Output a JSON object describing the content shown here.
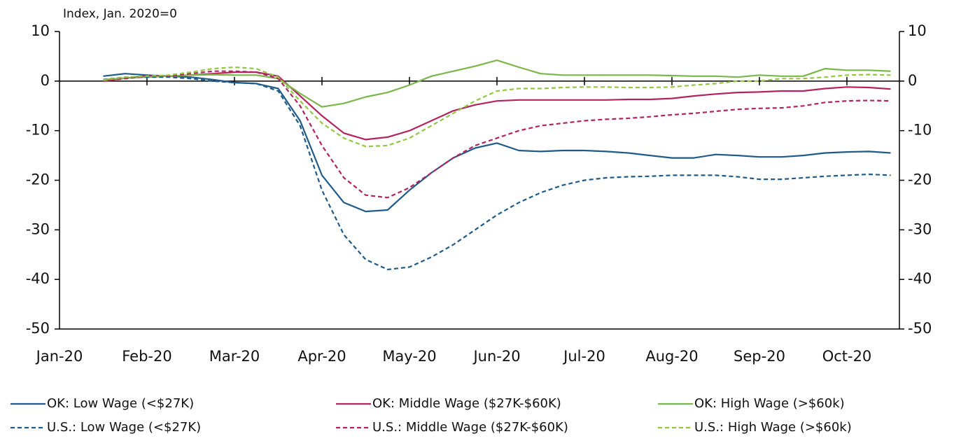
{
  "chart_data": {
    "type": "line",
    "y_label": "Index, Jan. 2020=0",
    "categories": [
      "Jan-20",
      null,
      null,
      null,
      "Feb-20",
      null,
      null,
      null,
      "Mar-20",
      null,
      null,
      null,
      "Apr-20",
      null,
      null,
      null,
      "May-20",
      null,
      null,
      null,
      "Jun-20",
      null,
      null,
      null,
      "Jul-20",
      null,
      null,
      null,
      "Aug-20",
      null,
      null,
      null,
      "Sep-20",
      null,
      null,
      null,
      "Oct-20",
      null,
      null
    ],
    "series": [
      {
        "name": "OK: Low Wage (<$27K)",
        "color": "#1f5b8a",
        "dashed": false,
        "values": [
          null,
          null,
          1,
          1.5,
          1.2,
          1,
          0.8,
          0.3,
          -0.3,
          -0.5,
          -1.5,
          -8,
          -19,
          -24.5,
          -26.3,
          -26,
          -22,
          -18.5,
          -15.5,
          -13.5,
          -12.5,
          -14,
          -14.2,
          -14,
          -14,
          -14.2,
          -14.5,
          -15,
          -15.5,
          -15.5,
          -14.8,
          -15,
          -15.3,
          -15.3,
          -15,
          -14.5,
          -14.3,
          -14.2,
          -14.5
        ]
      },
      {
        "name": "OK: Middle Wage ($27K-$60K)",
        "color": "#b5235f",
        "dashed": false,
        "values": [
          null,
          null,
          0,
          0.6,
          1,
          1,
          1.2,
          1.5,
          1.8,
          1.8,
          1,
          -3,
          -7,
          -10.5,
          -11.8,
          -11.3,
          -10,
          -8,
          -6,
          -4.8,
          -4,
          -3.8,
          -3.8,
          -3.8,
          -3.8,
          -3.8,
          -3.7,
          -3.7,
          -3.5,
          -3,
          -2.6,
          -2.3,
          -2.2,
          -2,
          -2,
          -1.5,
          -1.2,
          -1.3,
          -1.6
        ]
      },
      {
        "name": "OK: High Wage (>$60k)",
        "color": "#7ab648",
        "dashed": false,
        "values": [
          null,
          null,
          0.3,
          0.6,
          0.8,
          1,
          1.2,
          1.3,
          1.2,
          1.2,
          0.5,
          -2.5,
          -5.2,
          -4.5,
          -3.2,
          -2.3,
          -0.8,
          1,
          2,
          3,
          4.2,
          2.8,
          1.5,
          1.2,
          1.2,
          1.2,
          1.2,
          1.2,
          1.1,
          1,
          1,
          0.8,
          1.2,
          1,
          1,
          2.5,
          2.2,
          2.2,
          2
        ]
      },
      {
        "name": "U.S.: Low Wage (<$27K)",
        "color": "#1f5b8a",
        "dashed": true,
        "values": [
          null,
          null,
          0.3,
          0.8,
          0.8,
          0.8,
          0.5,
          0,
          -0.3,
          -0.5,
          -2,
          -9,
          -22,
          -31,
          -36,
          -38,
          -37.5,
          -35.5,
          -33,
          -30,
          -27,
          -24.5,
          -22.5,
          -21,
          -20,
          -19.5,
          -19.3,
          -19.2,
          -19,
          -19,
          -19,
          -19.3,
          -19.8,
          -19.8,
          -19.5,
          -19.2,
          -19,
          -18.8,
          -19
        ]
      },
      {
        "name": "U.S.: Middle Wage ($27K-$60K)",
        "color": "#b5235f",
        "dashed": true,
        "values": [
          null,
          null,
          0,
          0.5,
          1,
          1,
          1.5,
          2,
          2,
          1.8,
          0.5,
          -5,
          -13,
          -19.5,
          -23,
          -23.5,
          -21.5,
          -18.5,
          -15.5,
          -13,
          -11.5,
          -10,
          -9,
          -8.5,
          -8,
          -7.7,
          -7.5,
          -7.2,
          -6.8,
          -6.5,
          -6.1,
          -5.7,
          -5.5,
          -5.4,
          -5,
          -4.3,
          -4,
          -3.9,
          -4
        ]
      },
      {
        "name": "U.S.: High Wage (>$60k)",
        "color": "#92c83e",
        "dashed": true,
        "values": [
          null,
          null,
          0.2,
          0.8,
          1,
          1.2,
          1.8,
          2.5,
          2.8,
          2.5,
          0.8,
          -4,
          -8.5,
          -11.5,
          -13.2,
          -13,
          -11.5,
          -9,
          -6.5,
          -4,
          -2,
          -1.5,
          -1.5,
          -1.3,
          -1.2,
          -1.2,
          -1.3,
          -1.3,
          -1.2,
          -0.8,
          -0.5,
          0,
          0,
          0.5,
          0.5,
          0.8,
          1.2,
          1.3,
          1.2
        ]
      }
    ],
    "ylim": [
      -50,
      10
    ],
    "yticks": [
      -50,
      -40,
      -30,
      -20,
      -10,
      0,
      10
    ],
    "y2lim": [
      -50,
      10
    ],
    "y2ticks": [
      -50,
      -40,
      -30,
      -20,
      -10,
      0,
      10
    ],
    "grid": false
  }
}
